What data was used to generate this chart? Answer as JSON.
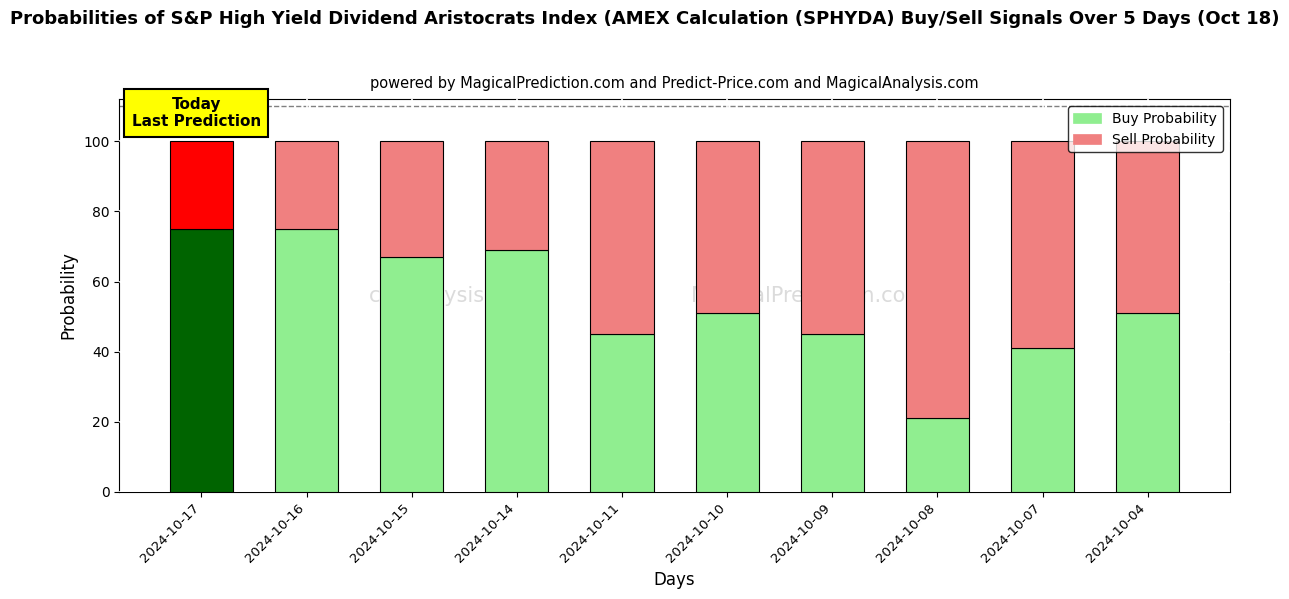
{
  "title": "Probabilities of S&P High Yield Dividend Aristocrats Index (AMEX Calculation (SPHYDA) Buy/Sell Signals Over 5 Days (Oct 18)",
  "subtitle": "powered by MagicalPrediction.com and Predict-Price.com and MagicalAnalysis.com",
  "xlabel": "Days",
  "ylabel": "Probability",
  "categories": [
    "2024-10-17",
    "2024-10-16",
    "2024-10-15",
    "2024-10-14",
    "2024-10-11",
    "2024-10-10",
    "2024-10-09",
    "2024-10-08",
    "2024-10-07",
    "2024-10-04"
  ],
  "buy_values": [
    75,
    75,
    67,
    69,
    45,
    51,
    45,
    21,
    41,
    51
  ],
  "sell_values": [
    25,
    25,
    33,
    31,
    55,
    49,
    55,
    79,
    59,
    49
  ],
  "today_index": 0,
  "buy_color_dark": "#006400",
  "buy_color_light": "#90EE90",
  "sell_color_bright": "#FF0000",
  "sell_color_light": "#F08080",
  "annotation_box_color": "#FFFF00",
  "annotation_text": "Today\nLast Prediction",
  "ylim": [
    0,
    112
  ],
  "yticks": [
    0,
    20,
    40,
    60,
    80,
    100
  ],
  "dashed_line_y": 110,
  "legend_buy_label": "Buy Probability",
  "legend_sell_label": "Sell Probability",
  "title_fontsize": 13,
  "subtitle_fontsize": 10.5,
  "bg_color": "#ffffff",
  "grid_color": "#d0d0d0",
  "bar_width": 0.6
}
